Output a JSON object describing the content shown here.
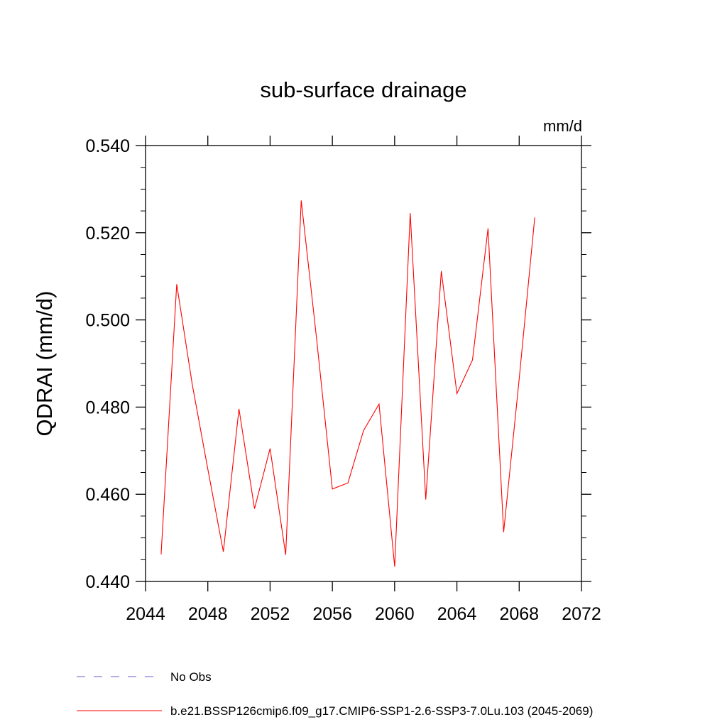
{
  "chart_data": {
    "type": "line",
    "title": "sub-surface drainage",
    "units_label": "mm/d",
    "xlabel": "",
    "ylabel": "QDRAI  (mm/d)",
    "xlim": [
      2044,
      2072
    ],
    "ylim": [
      0.44,
      0.54
    ],
    "x_ticks": [
      2044,
      2048,
      2052,
      2056,
      2060,
      2064,
      2068,
      2072
    ],
    "x_tick_labels": [
      "2044",
      "2048",
      "2052",
      "2056",
      "2060",
      "2064",
      "2068",
      "2072"
    ],
    "y_ticks": [
      0.44,
      0.46,
      0.48,
      0.5,
      0.52,
      0.54
    ],
    "y_tick_labels": [
      "0.440",
      "0.460",
      "0.480",
      "0.500",
      "0.520",
      "0.540"
    ],
    "grid": false,
    "legend_position": "bottom",
    "series": [
      {
        "name": "No Obs",
        "color": "#6a5acd",
        "style": "dashed",
        "x": [],
        "y": []
      },
      {
        "name": "b.e21.BSSP126cmip6.f09_g17.CMIP6-SSP1-2.6-SSP3-7.0Lu.103 (2045-2069)",
        "color": "#ff0000",
        "style": "solid",
        "x": [
          2045,
          2046,
          2047,
          2048,
          2049,
          2050,
          2051,
          2052,
          2053,
          2054,
          2055,
          2056,
          2057,
          2058,
          2059,
          2060,
          2061,
          2062,
          2063,
          2064,
          2065,
          2066,
          2067,
          2068,
          2069
        ],
        "y": [
          0.4462,
          0.5082,
          0.4852,
          0.4658,
          0.4468,
          0.4796,
          0.4567,
          0.4705,
          0.4461,
          0.5274,
          0.4953,
          0.4612,
          0.4626,
          0.4746,
          0.4807,
          0.4434,
          0.5245,
          0.4588,
          0.5112,
          0.4831,
          0.4908,
          0.521,
          0.4513,
          0.4865,
          0.5235
        ]
      }
    ]
  }
}
